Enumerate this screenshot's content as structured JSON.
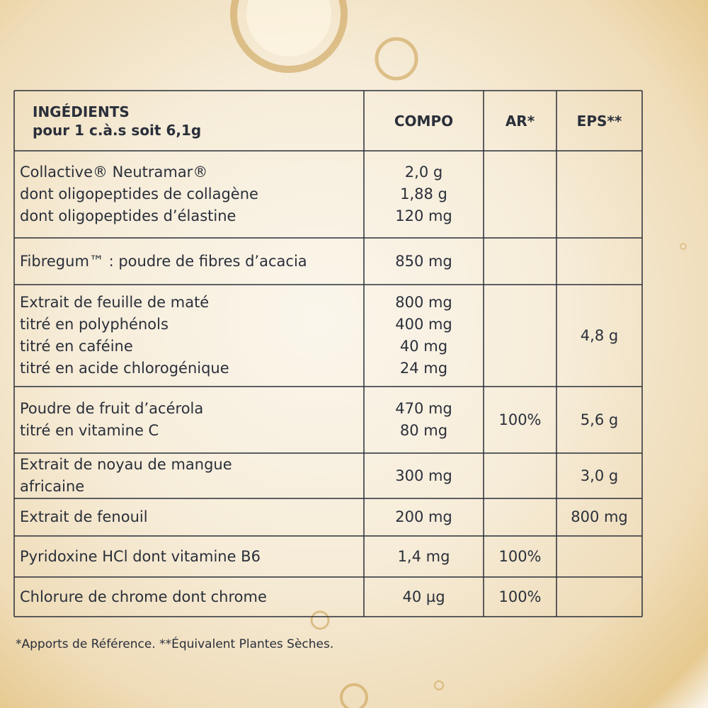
{
  "table": {
    "header": [
      [
        "INGÉDIENTS",
        "pour 1 c.à.s soit 6,1g"
      ],
      [
        "COMPO"
      ],
      [
        "AR*"
      ],
      [
        "EPS**"
      ]
    ],
    "rows": [
      [
        [
          "Collactive® Neutramar®",
          "dont oligopeptides de collagène",
          "dont oligopeptides d’élastine"
        ],
        [
          "2,0 g",
          "1,88 g",
          "120 mg"
        ],
        [],
        []
      ],
      [
        [
          "Fibregum™ : poudre de fibres d’acacia"
        ],
        [
          "850 mg"
        ],
        [],
        []
      ],
      [
        [
          "Extrait de feuille de maté",
          "titré en polyphénols",
          "titré en caféine",
          "titré en acide chlorogénique"
        ],
        [
          "800 mg",
          "400 mg",
          "40 mg",
          "24 mg"
        ],
        [],
        [
          "4,8 g"
        ]
      ],
      [
        [
          "Poudre de fruit d’acérola",
          "titré en vitamine C"
        ],
        [
          "470 mg",
          "80 mg"
        ],
        [
          "100%"
        ],
        [
          "5,6 g"
        ]
      ],
      [
        [
          "Extrait de noyau de mangue",
          "africaine"
        ],
        [
          "300 mg"
        ],
        [],
        [
          "3,0 g"
        ]
      ],
      [
        [
          "Extrait de fenouil"
        ],
        [
          "200 mg"
        ],
        [],
        [
          "800 mg"
        ]
      ],
      [
        [
          "Pyridoxine HCl dont vitamine B6"
        ],
        [
          "1,4 mg"
        ],
        [
          "100%"
        ],
        []
      ],
      [
        [
          "Chlorure de chrome dont chrome"
        ],
        [
          "40 µg"
        ],
        [
          "100%"
        ],
        []
      ]
    ]
  },
  "footnote": "*Apports de Référence. **Équivalent Plantes Sèches."
}
